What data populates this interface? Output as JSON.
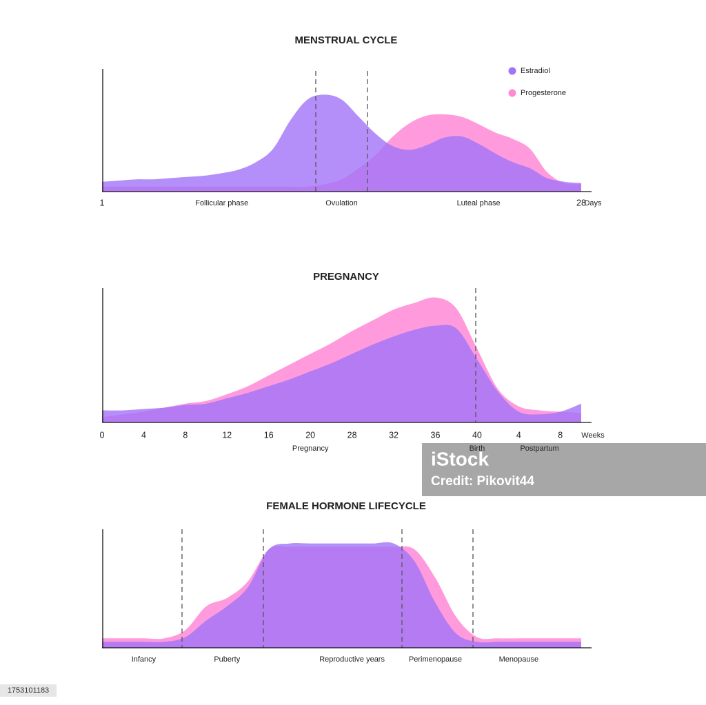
{
  "chart_data": [
    {
      "type": "area",
      "title": "MENSTRUAL CYCLE",
      "x_label": "Days",
      "legend": "top-right",
      "ylim": [
        0,
        100
      ],
      "categories": [
        "1",
        null,
        null,
        null,
        null,
        null,
        null,
        "Follicular phase",
        null,
        null,
        null,
        null,
        null,
        null,
        "Ovulation",
        null,
        null,
        null,
        null,
        null,
        null,
        null,
        "Luteal phase",
        null,
        null,
        null,
        null,
        null,
        "28"
      ],
      "series": [
        {
          "name": "Estradiol",
          "color": "#a173f7",
          "values": [
            8,
            9,
            10,
            10,
            11,
            12,
            13,
            15,
            18,
            24,
            35,
            58,
            75,
            79,
            75,
            61,
            47,
            37,
            34,
            38,
            44,
            45,
            39,
            31,
            24,
            19,
            11,
            8,
            7
          ]
        },
        {
          "name": "Progesterone",
          "color": "#ff8ad6",
          "values": [
            4,
            4,
            4,
            4,
            4,
            4,
            4,
            4,
            4,
            4,
            4,
            4,
            4,
            6,
            10,
            19,
            30,
            45,
            56,
            62,
            63,
            61,
            55,
            48,
            43,
            35,
            16,
            7,
            6
          ]
        }
      ]
    },
    {
      "type": "area",
      "title": "PREGNANCY",
      "x_label": "Weeks",
      "ylim": [
        0,
        100
      ],
      "categories": [
        "0",
        null,
        "4",
        null,
        "8",
        null,
        "12",
        null,
        "16",
        null,
        "20",
        null,
        "28",
        null,
        "32",
        null,
        "36",
        null,
        "40",
        null,
        "4",
        null,
        "8",
        null
      ],
      "phases": [
        null,
        null,
        null,
        null,
        null,
        null,
        null,
        null,
        null,
        null,
        "Pregnancy",
        null,
        null,
        null,
        null,
        null,
        null,
        null,
        "Birth",
        null,
        null,
        "Postpartum",
        null,
        null
      ],
      "series": [
        {
          "color": "#a173f7",
          "values": [
            9,
            9,
            10,
            11,
            13,
            14,
            18,
            22,
            27,
            32,
            38,
            44,
            51,
            58,
            64,
            69,
            72,
            70,
            47,
            23,
            8,
            6,
            8,
            14
          ]
        },
        {
          "color": "#ff8ad6",
          "values": [
            4,
            6,
            8,
            11,
            14,
            16,
            21,
            27,
            35,
            43,
            51,
            59,
            68,
            76,
            84,
            89,
            93,
            85,
            55,
            25,
            12,
            9,
            8,
            7
          ]
        }
      ]
    },
    {
      "type": "area",
      "title": "FEMALE HORMONE LIFECYCLE",
      "ylim": [
        0,
        100
      ],
      "categories": [
        null,
        null,
        "Infancy",
        null,
        null,
        null,
        "Puberty",
        null,
        null,
        null,
        null,
        null,
        "Reproductive years",
        null,
        null,
        null,
        "Perimenopause",
        null,
        null,
        null,
        "Menopause",
        null,
        null,
        null
      ],
      "series": [
        {
          "color": "#a173f7",
          "values": [
            5,
            5,
            5,
            5,
            9,
            23,
            35,
            51,
            83,
            88,
            88,
            88,
            88,
            88,
            88,
            73,
            38,
            12,
            5,
            5,
            5,
            5,
            5,
            5
          ]
        },
        {
          "color": "#ff8ad6",
          "values": [
            8,
            8,
            8,
            8,
            15,
            35,
            42,
            56,
            83,
            85,
            85,
            85,
            85,
            85,
            85,
            83,
            59,
            26,
            9,
            8,
            8,
            8,
            8,
            8
          ]
        }
      ]
    }
  ],
  "watermark": {
    "brand": "iStock",
    "credit": "Credit: Pikovit44"
  },
  "image_id": "1753101183"
}
